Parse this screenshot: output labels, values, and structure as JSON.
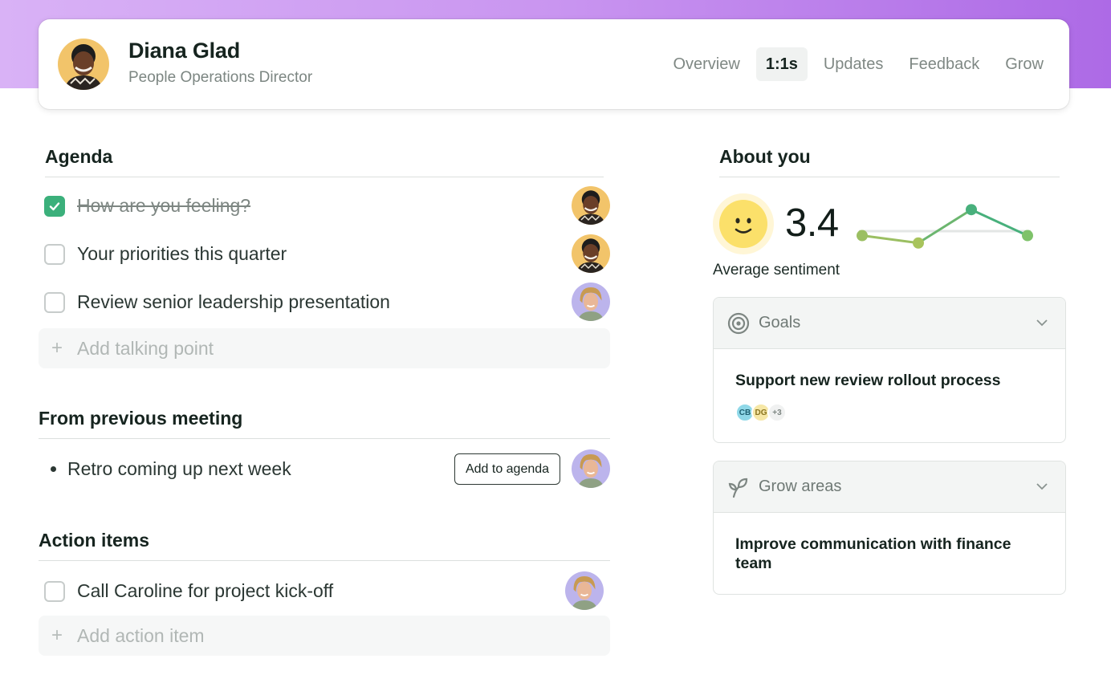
{
  "colors": {
    "accent_green": "#3bb07b",
    "gradient_start": "#d9b2f6",
    "gradient_end": "#ad6ae6",
    "sentiment_yellow": "#fbe06a"
  },
  "profile": {
    "name": "Diana Glad",
    "role": "People Operations Director",
    "avatar_icon": "person-avatar"
  },
  "tabs": [
    {
      "label": "Overview",
      "active": false
    },
    {
      "label": "1:1s",
      "active": true
    },
    {
      "label": "Updates",
      "active": false
    },
    {
      "label": "Feedback",
      "active": false
    },
    {
      "label": "Grow",
      "active": false
    }
  ],
  "agenda": {
    "title": "Agenda",
    "items": [
      {
        "text": "How are you feeling?",
        "checked": true,
        "owner": "diana"
      },
      {
        "text": "Your priorities this quarter",
        "checked": false,
        "owner": "diana"
      },
      {
        "text": "Review senior leadership presentation",
        "checked": false,
        "owner": "caroline"
      }
    ],
    "add_placeholder": "Add talking point"
  },
  "previous_meeting": {
    "title": "From previous meeting",
    "items": [
      {
        "text": "Retro coming up next week",
        "button": "Add to agenda",
        "owner": "caroline"
      }
    ]
  },
  "action_items": {
    "title": "Action items",
    "items": [
      {
        "text": "Call Caroline for project kick-off",
        "checked": false,
        "owner": "caroline"
      }
    ],
    "add_placeholder": "Add action item"
  },
  "about": {
    "title": "About you",
    "score": "3.4",
    "score_label": "Average sentiment",
    "trend": [
      3.1,
      2.9,
      3.8,
      3.1
    ],
    "goals": {
      "title": "Goals",
      "icon": "target-icon",
      "goal": "Support new review rollout process",
      "chips": [
        "CB",
        "DG",
        "+3"
      ]
    },
    "grow": {
      "title": "Grow areas",
      "icon": "sprout-icon",
      "area": "Improve communication with finance team"
    }
  }
}
